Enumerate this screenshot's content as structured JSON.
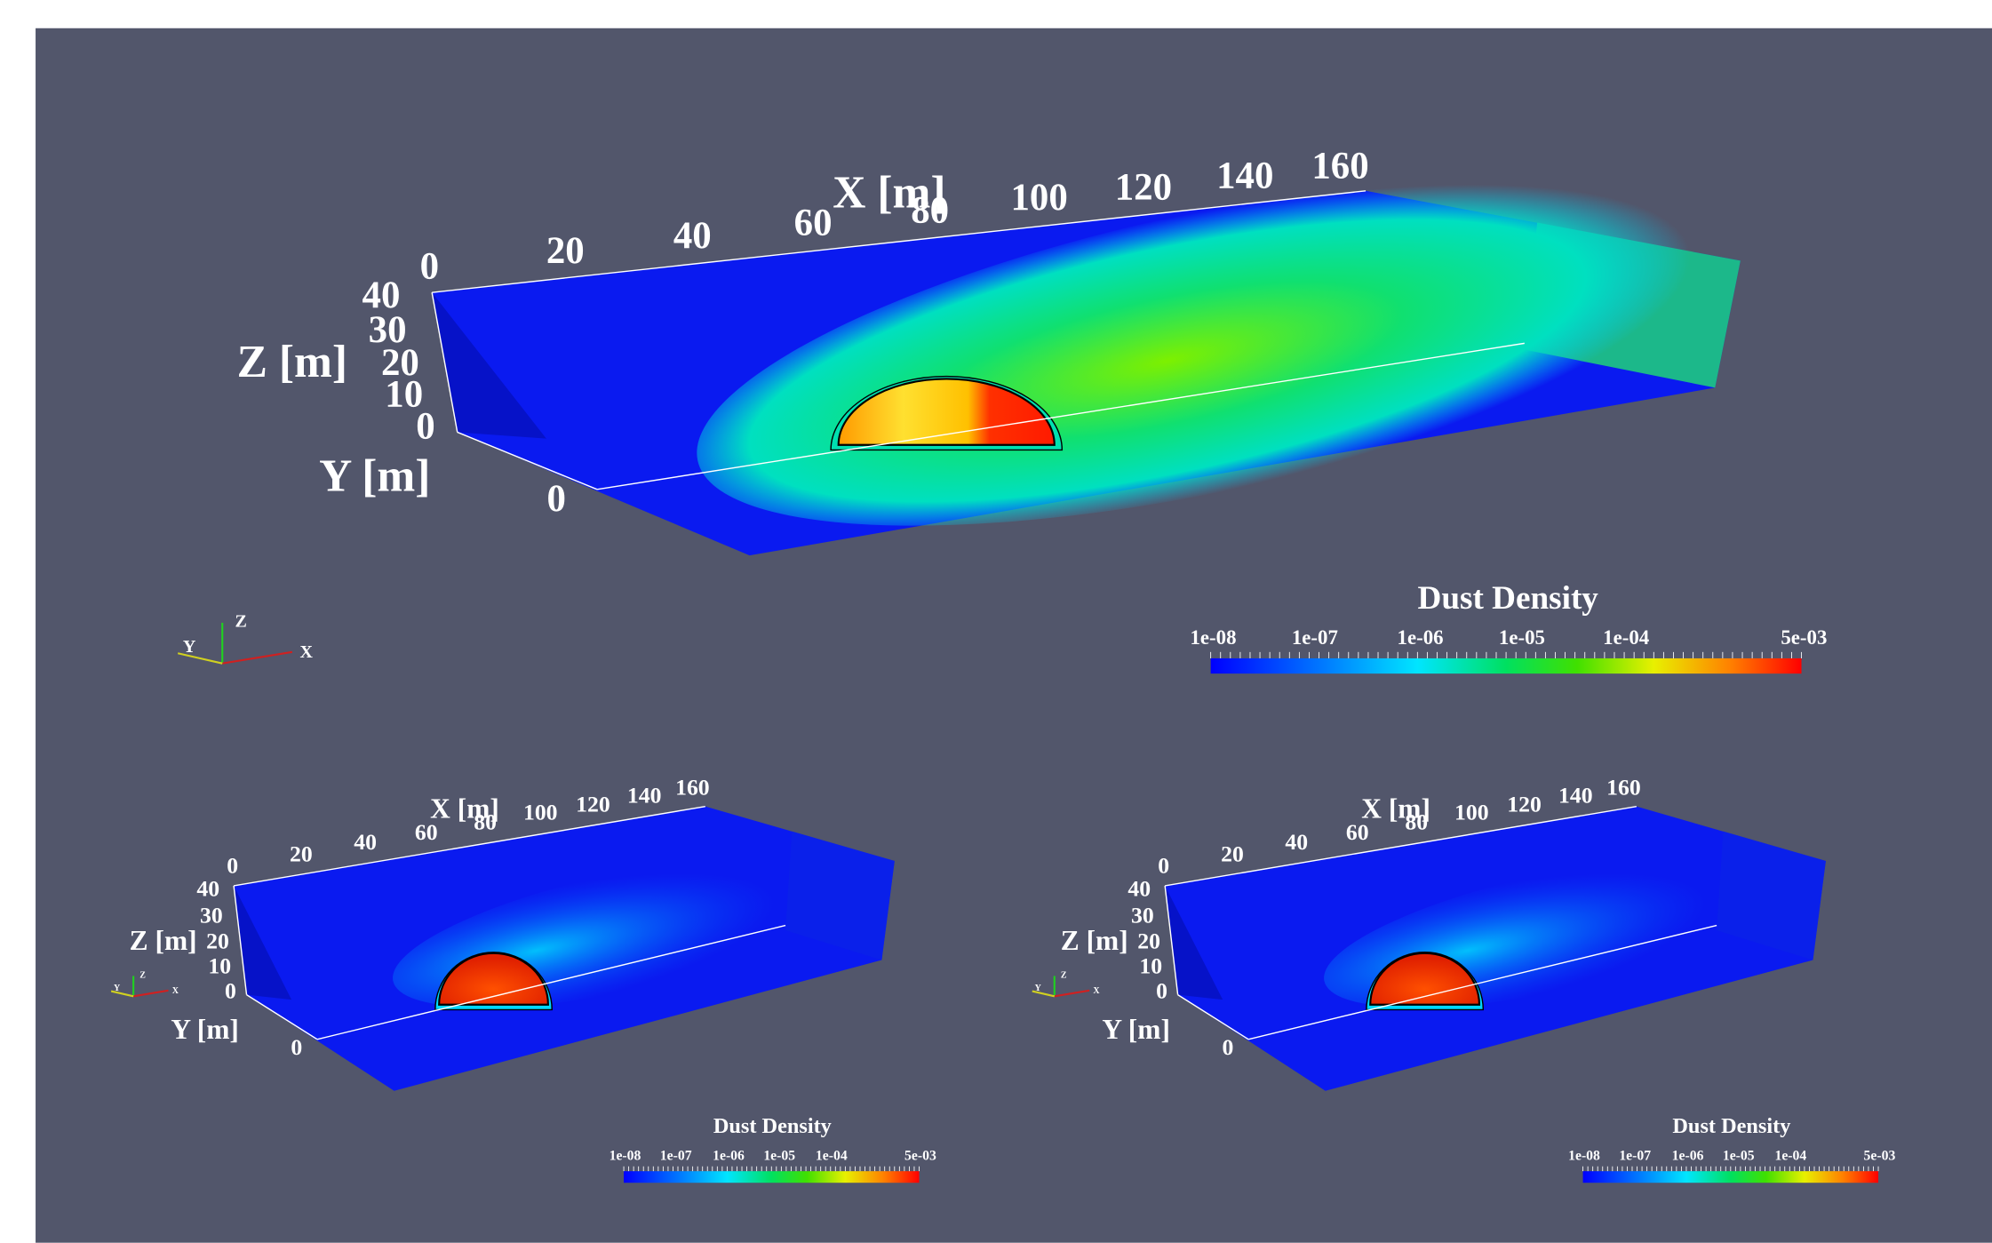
{
  "panels": [
    {
      "x_axis_title": "X [m]",
      "y_axis_title": "Y [m]",
      "z_axis_title": "Z [m]",
      "x_ticks": [
        "0",
        "20",
        "40",
        "60",
        "80",
        "100",
        "120",
        "140",
        "160"
      ],
      "z_ticks": [
        "40",
        "30",
        "20",
        "10",
        "0"
      ],
      "y_ticks": [
        "0"
      ],
      "colorbar": {
        "title": "Dust Density",
        "labels": [
          "1e-08",
          "1e-07",
          "1e-06",
          "1e-05",
          "1e-04",
          "5e-03"
        ]
      },
      "orientation": {
        "x": "X",
        "y": "Y",
        "z": "Z"
      }
    },
    {
      "x_axis_title": "X [m]",
      "y_axis_title": "Y [m]",
      "z_axis_title": "Z [m]",
      "x_ticks": [
        "0",
        "20",
        "40",
        "60",
        "80",
        "100",
        "120",
        "140",
        "160"
      ],
      "z_ticks": [
        "40",
        "30",
        "20",
        "10",
        "0"
      ],
      "y_ticks": [
        "0"
      ],
      "colorbar": {
        "title": "Dust Density",
        "labels": [
          "1e-08",
          "1e-07",
          "1e-06",
          "1e-05",
          "1e-04",
          "5e-03"
        ]
      },
      "orientation": {
        "x": "X",
        "y": "Y",
        "z": "Z"
      }
    },
    {
      "x_axis_title": "X [m]",
      "y_axis_title": "Y [m]",
      "z_axis_title": "Z [m]",
      "x_ticks": [
        "0",
        "20",
        "40",
        "60",
        "80",
        "100",
        "120",
        "140",
        "160"
      ],
      "z_ticks": [
        "40",
        "30",
        "20",
        "10",
        "0"
      ],
      "y_ticks": [
        "0"
      ],
      "colorbar": {
        "title": "Dust Density",
        "labels": [
          "1e-08",
          "1e-07",
          "1e-06",
          "1e-05",
          "1e-04",
          "5e-03"
        ]
      },
      "orientation": {
        "x": "X",
        "y": "Y",
        "z": "Z"
      }
    }
  ]
}
